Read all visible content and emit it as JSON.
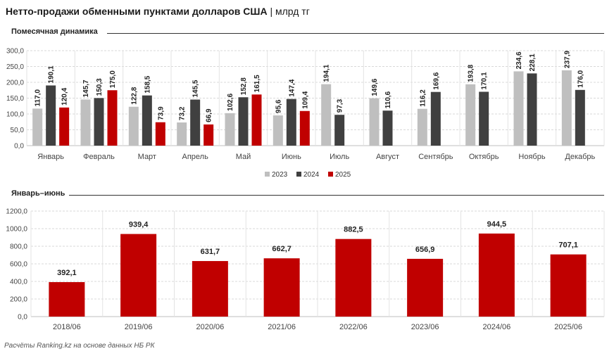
{
  "title": "Нетто-продажи обменными пунктами долларов США",
  "unit": "млрд тг",
  "source": "Расчёты Ranking.kz на основе данных НБ РК",
  "colors": {
    "2023": "#bfbfbf",
    "2024": "#404040",
    "2025": "#c00000"
  },
  "chart_data": [
    {
      "type": "bar",
      "title": "Помесячная динамика",
      "categories": [
        "Январь",
        "Февраль",
        "Март",
        "Апрель",
        "Май",
        "Июнь",
        "Июль",
        "Август",
        "Сентябрь",
        "Октябрь",
        "Ноябрь",
        "Декабрь"
      ],
      "series": [
        {
          "name": "2023",
          "values": [
            117.0,
            145.7,
            122.8,
            73.2,
            102.6,
            95.6,
            194.1,
            149.6,
            116.2,
            193.8,
            234.6,
            237.9
          ],
          "labels": [
            "117,0",
            "145,7",
            "122,8",
            "73,2",
            "102,6",
            "95,6",
            "194,1",
            "149,6",
            "116,2",
            "193,8",
            "234,6",
            "237,9"
          ]
        },
        {
          "name": "2024",
          "values": [
            190.1,
            150.3,
            158.5,
            145.5,
            152.8,
            147.4,
            97.3,
            110.6,
            169.6,
            170.1,
            228.1,
            176.0
          ],
          "labels": [
            "190,1",
            "150,3",
            "158,5",
            "145,5",
            "152,8",
            "147,4",
            "97,3",
            "110,6",
            "169,6",
            "170,1",
            "228,1",
            "176,0"
          ]
        },
        {
          "name": "2025",
          "values": [
            120.4,
            175.0,
            73.9,
            66.9,
            161.5,
            109.4,
            null,
            null,
            null,
            null,
            null,
            null
          ],
          "labels": [
            "120,4",
            "175,0",
            "73,9",
            "66,9",
            "161,5",
            "109,4",
            null,
            null,
            null,
            null,
            null,
            null
          ]
        }
      ],
      "ylim": [
        0,
        300
      ],
      "yticks": [
        0,
        50,
        100,
        150,
        200,
        250,
        300
      ],
      "ytick_labels": [
        "0,0",
        "50,0",
        "100,0",
        "150,0",
        "200,0",
        "250,0",
        "300,0"
      ],
      "grid": true,
      "legend": "bottom",
      "label_series": [
        "2023",
        "2024"
      ]
    },
    {
      "type": "bar",
      "title": "Январь–июнь",
      "categories": [
        "2018/06",
        "2019/06",
        "2020/06",
        "2021/06",
        "2022/06",
        "2023/06",
        "2024/06",
        "2025/06"
      ],
      "values": [
        392.1,
        939.4,
        631.7,
        662.7,
        882.5,
        656.9,
        944.5,
        707.1
      ],
      "labels": [
        "392,1",
        "939,4",
        "631,7",
        "662,7",
        "882,5",
        "656,9",
        "944,5",
        "707,1"
      ],
      "ylim": [
        0,
        1200
      ],
      "yticks": [
        0,
        200,
        400,
        600,
        800,
        1000,
        1200
      ],
      "ytick_labels": [
        "0,0",
        "200,0",
        "400,0",
        "600,0",
        "800,0",
        "1000,0",
        "1200,0"
      ],
      "grid": true,
      "color": "#c00000"
    }
  ]
}
